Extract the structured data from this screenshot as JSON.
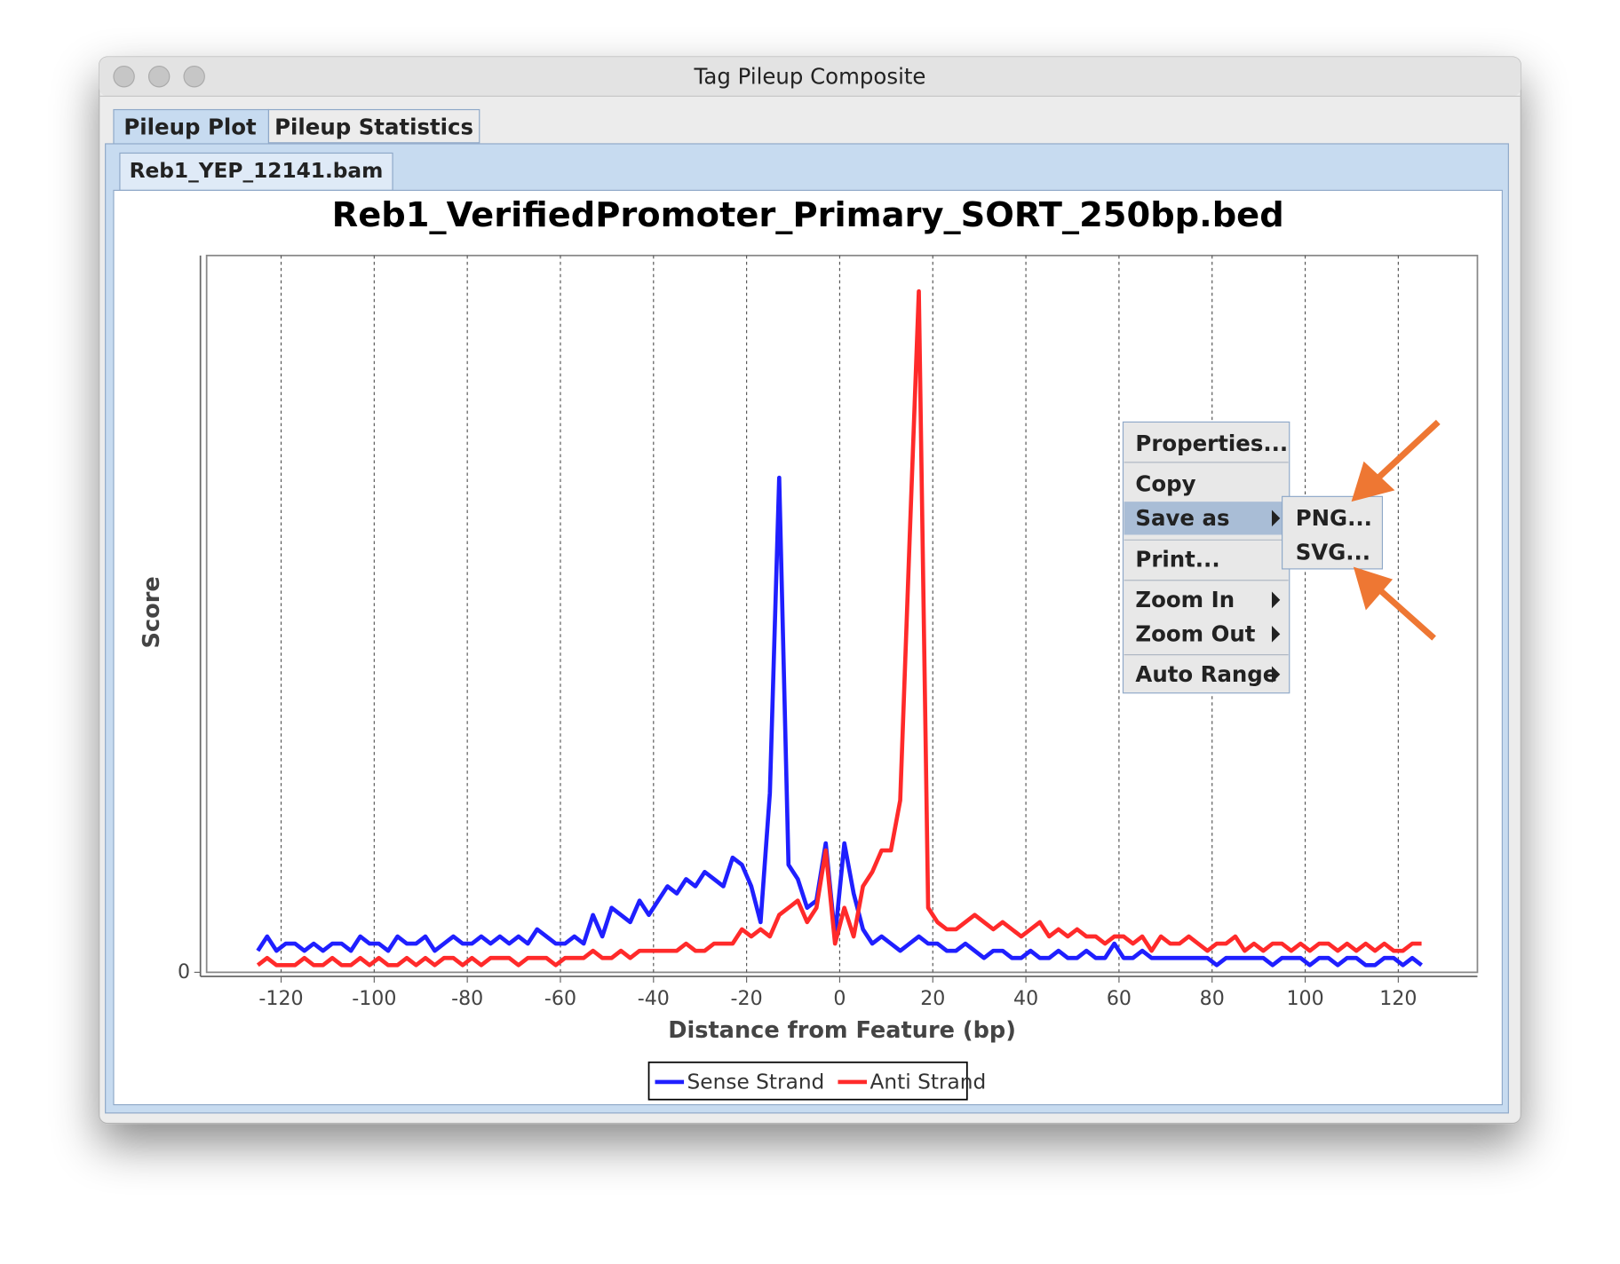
{
  "window": {
    "title": "Tag Pileup Composite"
  },
  "tabs": [
    "Pileup Plot",
    "Pileup Statistics"
  ],
  "subtabs": [
    "Reb1_YEP_12141.bam"
  ],
  "chart_data": {
    "type": "line",
    "title": "Reb1_VerifiedPromoter_Primary_SORT_250bp.bed",
    "x_label": "Distance from Feature (bp)",
    "y_label": "Score",
    "x": [
      -125,
      -123,
      -121,
      -119,
      -117,
      -115,
      -113,
      -111,
      -109,
      -107,
      -105,
      -103,
      -101,
      -99,
      -97,
      -95,
      -93,
      -91,
      -89,
      -87,
      -85,
      -83,
      -81,
      -79,
      -77,
      -75,
      -73,
      -71,
      -69,
      -67,
      -65,
      -63,
      -61,
      -59,
      -57,
      -55,
      -53,
      -51,
      -49,
      -47,
      -45,
      -43,
      -41,
      -39,
      -37,
      -35,
      -33,
      -31,
      -29,
      -27,
      -25,
      -23,
      -21,
      -19,
      -17,
      -15,
      -13,
      -11,
      -9,
      -7,
      -5,
      -3,
      -1,
      1,
      3,
      5,
      7,
      9,
      11,
      13,
      15,
      17,
      19,
      21,
      23,
      25,
      27,
      29,
      31,
      33,
      35,
      37,
      39,
      41,
      43,
      45,
      47,
      49,
      51,
      53,
      55,
      57,
      59,
      61,
      63,
      65,
      67,
      69,
      71,
      73,
      75,
      77,
      79,
      81,
      83,
      85,
      87,
      89,
      91,
      93,
      95,
      97,
      99,
      101,
      103,
      105,
      107,
      109,
      111,
      113,
      115,
      117,
      119,
      121,
      123,
      125
    ],
    "series": [
      {
        "name": "Sense Strand",
        "color": "#1f1fff",
        "values": [
          3,
          5,
          3,
          4,
          4,
          3,
          4,
          3,
          4,
          4,
          3,
          5,
          4,
          4,
          3,
          5,
          4,
          4,
          5,
          3,
          4,
          5,
          4,
          4,
          5,
          4,
          5,
          4,
          5,
          4,
          6,
          5,
          4,
          4,
          5,
          4,
          8,
          5,
          9,
          8,
          7,
          10,
          8,
          10,
          12,
          11,
          13,
          12,
          14,
          13,
          12,
          16,
          15,
          12,
          7,
          25,
          69,
          15,
          13,
          9,
          10,
          18,
          5,
          18,
          11,
          6,
          4,
          5,
          4,
          3,
          4,
          5,
          4,
          4,
          3,
          3,
          4,
          3,
          2,
          3,
          3,
          2,
          2,
          3,
          2,
          2,
          3,
          2,
          2,
          3,
          2,
          2,
          4,
          2,
          2,
          3,
          2,
          2,
          2,
          2,
          2,
          2,
          2,
          1,
          2,
          2,
          2,
          2,
          2,
          1,
          2,
          2,
          2,
          1,
          2,
          2,
          1,
          2,
          2,
          1,
          1,
          2,
          2,
          1,
          2,
          1
        ]
      },
      {
        "name": "Anti Strand",
        "color": "#ff2a2a",
        "values": [
          1,
          2,
          1,
          1,
          1,
          2,
          1,
          1,
          2,
          1,
          1,
          2,
          1,
          2,
          1,
          1,
          2,
          1,
          2,
          1,
          2,
          2,
          1,
          2,
          1,
          2,
          2,
          2,
          1,
          2,
          2,
          2,
          1,
          2,
          2,
          2,
          3,
          2,
          2,
          3,
          2,
          3,
          3,
          3,
          3,
          3,
          4,
          3,
          3,
          4,
          4,
          4,
          6,
          5,
          6,
          5,
          8,
          9,
          10,
          7,
          9,
          17,
          4,
          9,
          5,
          12,
          14,
          17,
          17,
          24,
          60,
          95,
          9,
          7,
          6,
          6,
          7,
          8,
          7,
          6,
          7,
          6,
          5,
          6,
          7,
          5,
          6,
          5,
          6,
          5,
          5,
          4,
          5,
          5,
          4,
          5,
          3,
          5,
          4,
          4,
          5,
          4,
          3,
          4,
          4,
          5,
          3,
          4,
          3,
          4,
          4,
          3,
          4,
          3,
          4,
          4,
          3,
          4,
          3,
          4,
          3,
          4,
          3,
          3,
          4,
          4
        ]
      }
    ],
    "xlim": [
      -136,
      137
    ],
    "xticks": [
      -120,
      -100,
      -80,
      -60,
      -40,
      -20,
      0,
      20,
      40,
      60,
      80,
      100,
      120
    ],
    "ylim": [
      0,
      100
    ],
    "yticks": [
      0
    ],
    "grid": "x",
    "legend": "bottom"
  },
  "context_menu": {
    "items": [
      "Properties...",
      "Copy",
      "Save as",
      "Print...",
      "Zoom In",
      "Zoom Out",
      "Auto Range"
    ],
    "submenu": [
      "PNG...",
      "SVG..."
    ]
  }
}
